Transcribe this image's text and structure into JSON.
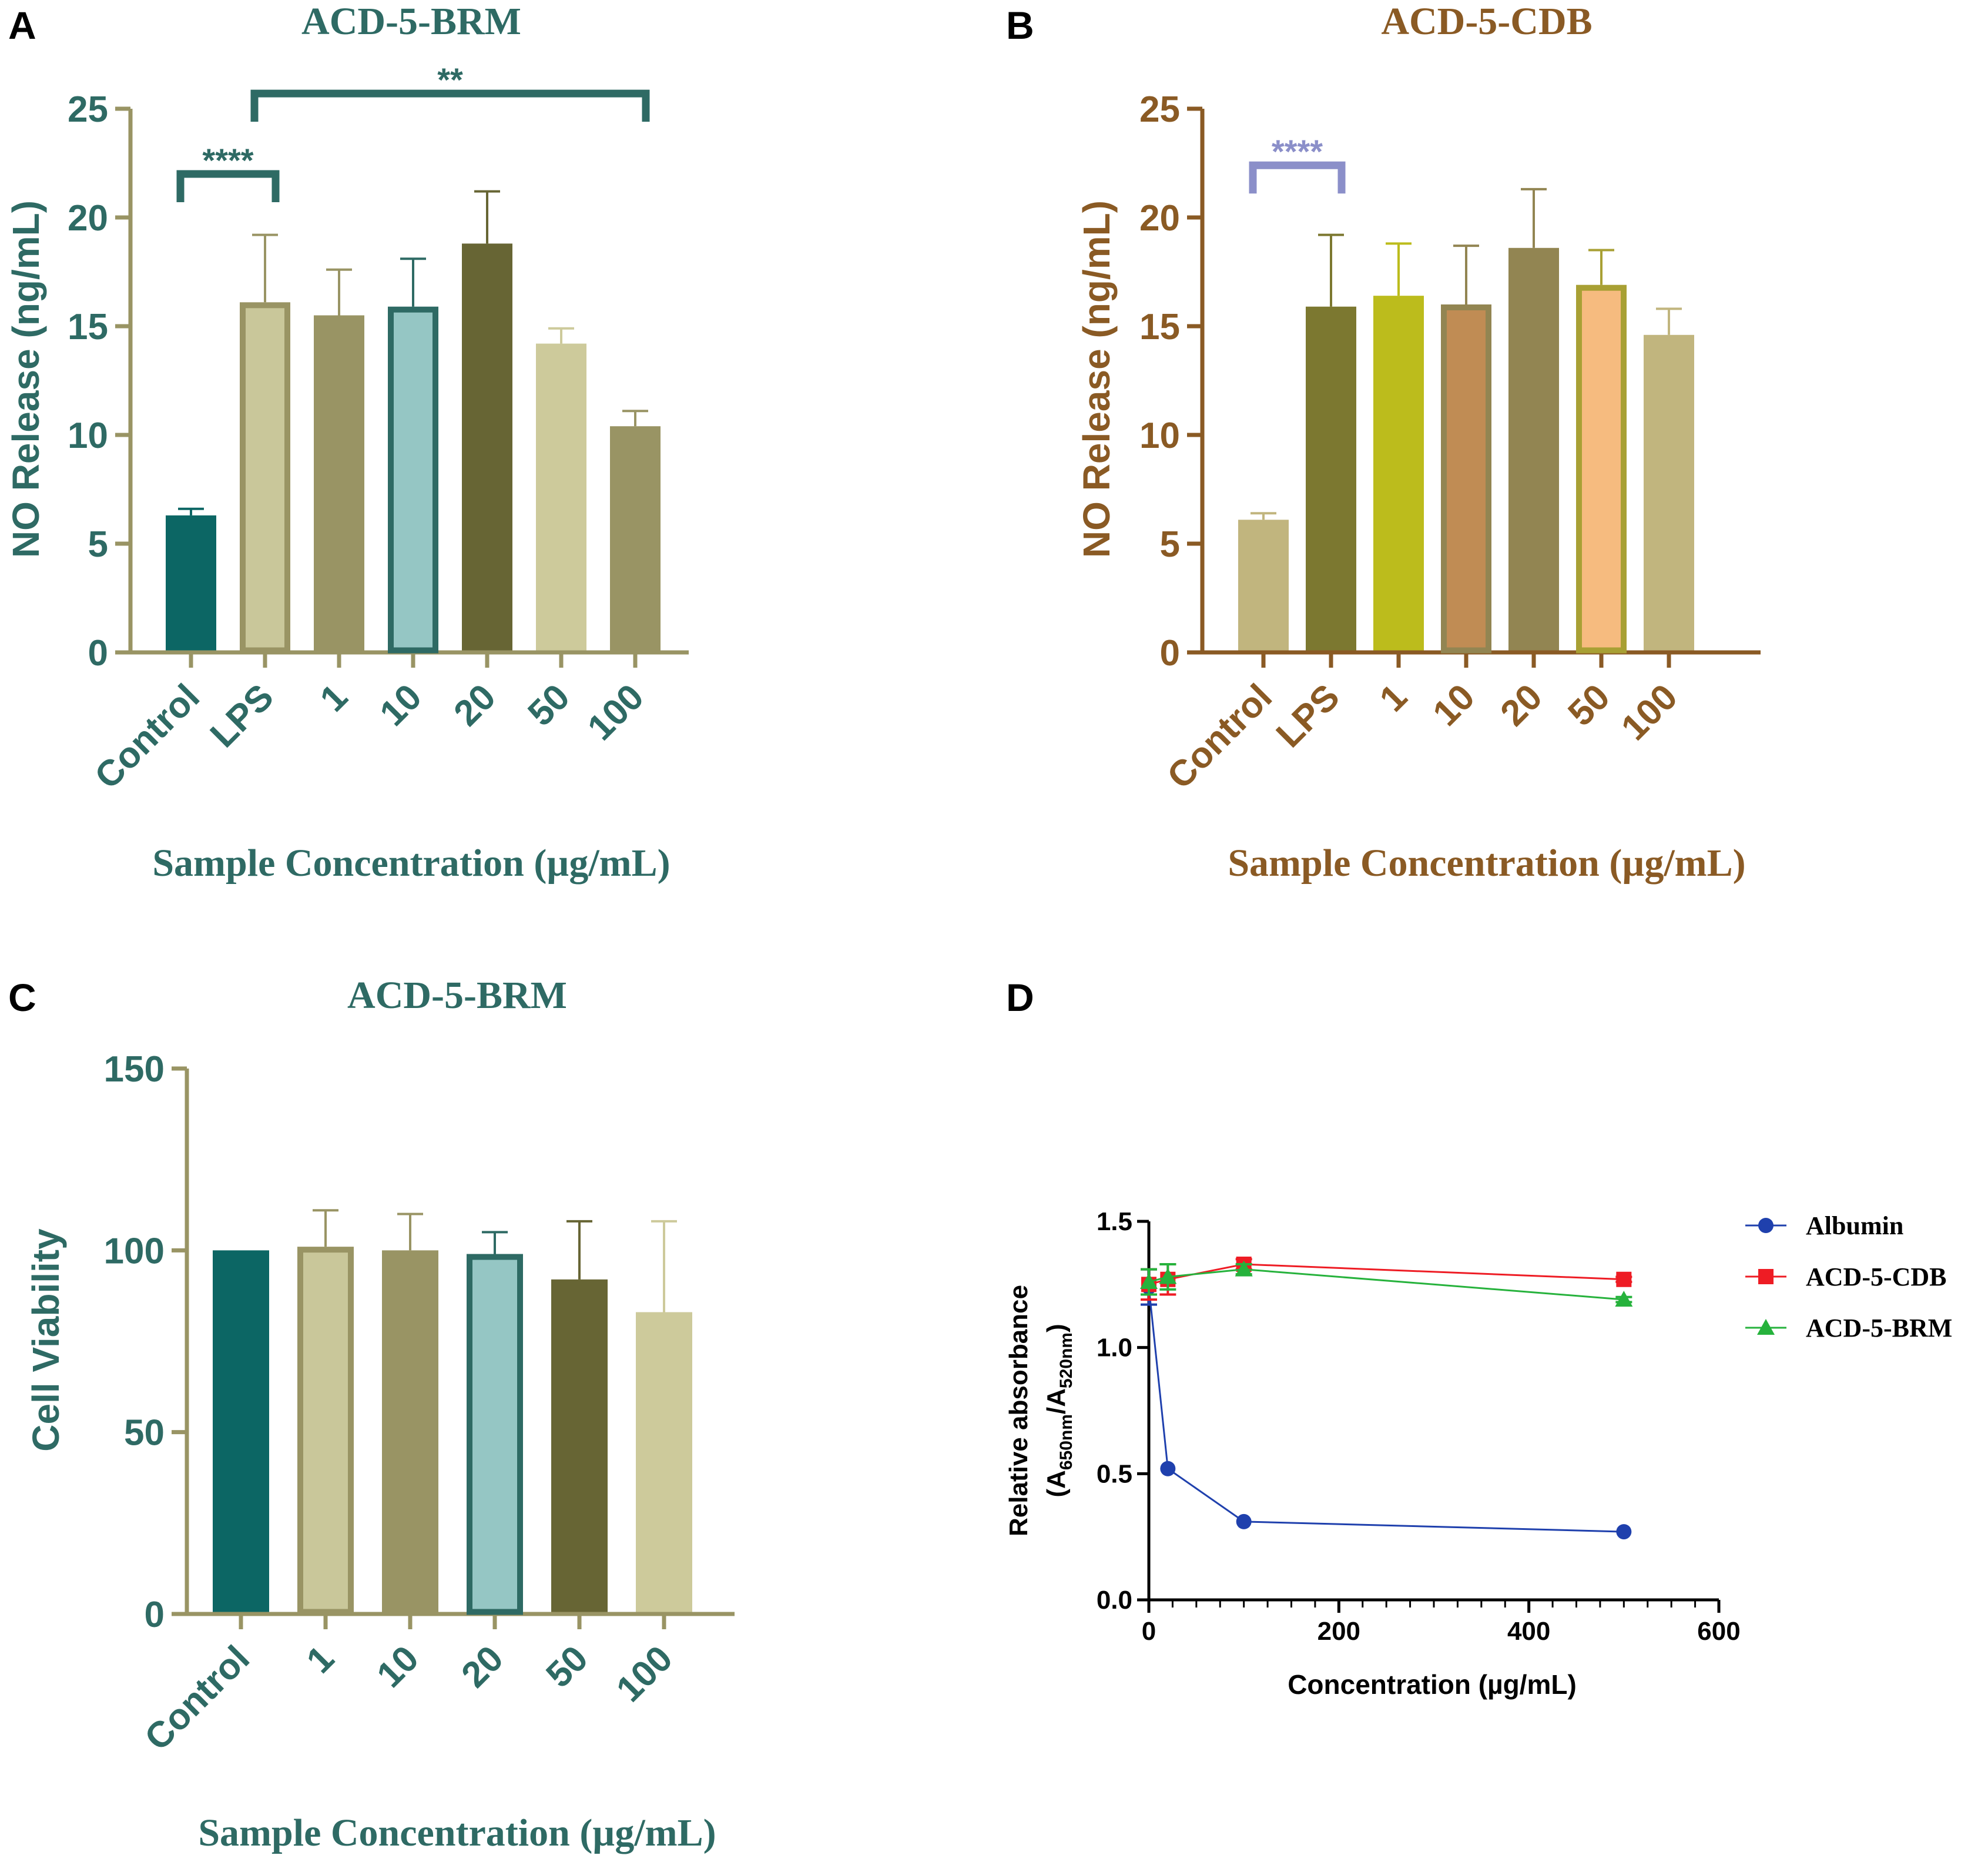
{
  "panels": {
    "A": {
      "letter": "A",
      "color": "#2e6a64"
    },
    "B": {
      "letter": "B",
      "color": "#8a5a24"
    },
    "C": {
      "letter": "C",
      "color": "#2e6a64"
    },
    "D": {
      "letter": "D",
      "color": "#000000"
    }
  },
  "chart_data": [
    {
      "panel": "A",
      "type": "bar",
      "title": "ACD-5-BRM",
      "xlabel": "Sample Concentration (µg/mL)",
      "ylabel": "NO Release (ng/mL)",
      "ylim": [
        0,
        25
      ],
      "yticks": [
        0,
        5,
        10,
        15,
        20,
        25
      ],
      "categories": [
        "Control",
        "LPS",
        "1",
        "10",
        "20",
        "50",
        "100"
      ],
      "values": [
        6.3,
        16.1,
        15.5,
        15.9,
        18.8,
        14.2,
        10.4
      ],
      "errors": [
        0.3,
        3.1,
        2.1,
        2.2,
        2.4,
        0.7,
        0.7
      ],
      "bar_fill": [
        "#0c6664",
        "#c9c79a",
        "#999464",
        "#95c6c4",
        "#676534",
        "#cdca9b",
        "#999464"
      ],
      "bar_edge": [
        "#0c6664",
        "#999464",
        "#999464",
        "#2e6a64",
        "#676534",
        "#cdca9b",
        "#999464"
      ],
      "axis_color": "#999464",
      "text_color": "#2e6a64",
      "significance": [
        {
          "from": "Control",
          "to": "LPS",
          "label": "****",
          "level": 22.0,
          "color": "#2e6a64"
        },
        {
          "from": "LPS",
          "to": "100",
          "label": "**",
          "level": 25.7,
          "color": "#2e6a64"
        }
      ]
    },
    {
      "panel": "B",
      "type": "bar",
      "title": "ACD-5-CDB",
      "xlabel": "Sample Concentration (µg/mL)",
      "ylabel": "NO Release (ng/mL)",
      "ylim": [
        0,
        25
      ],
      "yticks": [
        0,
        5,
        10,
        15,
        20,
        25
      ],
      "categories": [
        "Control",
        "LPS",
        "1",
        "10",
        "20",
        "50",
        "100"
      ],
      "values": [
        6.1,
        15.9,
        16.4,
        16.0,
        18.6,
        16.9,
        14.6
      ],
      "errors": [
        0.3,
        3.3,
        2.4,
        2.7,
        2.7,
        1.6,
        1.2
      ],
      "bar_fill": [
        "#c1b57e",
        "#7c7830",
        "#bcbc1c",
        "#c08c54",
        "#928552",
        "#f6bb7f",
        "#c1b57e"
      ],
      "bar_edge": [
        "#c1b57e",
        "#7c7830",
        "#bcbc1c",
        "#928552",
        "#928552",
        "#a8a034",
        "#c1b57e"
      ],
      "axis_color": "#8a5a24",
      "text_color": "#8a5a24",
      "significance": [
        {
          "from": "Control",
          "to": "LPS",
          "label": "****",
          "level": 22.4,
          "color": "#8b8fc9"
        }
      ]
    },
    {
      "panel": "C",
      "type": "bar",
      "title": "ACD-5-BRM",
      "xlabel": "Sample Concentration (µg/mL)",
      "ylabel": "Cell Viability",
      "ylim": [
        0,
        150
      ],
      "yticks": [
        0,
        50,
        100,
        150
      ],
      "categories": [
        "Control",
        "1",
        "10",
        "20",
        "50",
        "100"
      ],
      "values": [
        100,
        101,
        100,
        99,
        92,
        83
      ],
      "errors": [
        0,
        10,
        10,
        6,
        16,
        25
      ],
      "bar_fill": [
        "#0c6664",
        "#c9c79a",
        "#999464",
        "#95c6c4",
        "#676534",
        "#cdca9b"
      ],
      "bar_edge": [
        "#0c6664",
        "#999464",
        "#999464",
        "#2e6a64",
        "#676534",
        "#cdca9b"
      ],
      "axis_color": "#999464",
      "text_color": "#2e6a64",
      "significance": []
    },
    {
      "panel": "D",
      "type": "line",
      "title": "",
      "xlabel": "Concentration (µg/mL)",
      "ylabel": "Relative absorbance",
      "ylabel2_main": "(A",
      "ylabel2_sub1": "650nm",
      "ylabel2_mid": "/A",
      "ylabel2_sub2": "520nm",
      "ylabel2_end": ")",
      "xlim": [
        0,
        600
      ],
      "ylim": [
        0,
        1.5
      ],
      "xticks": [
        0,
        200,
        400,
        600
      ],
      "yticks": [
        0.0,
        0.5,
        1.0,
        1.5
      ],
      "ytick_labels": [
        "0.0",
        "0.5",
        "1.0",
        "1.5"
      ],
      "x": [
        0,
        20,
        100,
        500
      ],
      "series": [
        {
          "name": "Albumin",
          "values": [
            1.24,
            0.52,
            0.31,
            0.27
          ],
          "errors": [
            0.07,
            0.0,
            0.0,
            0.0
          ],
          "color": "#1f40ad",
          "marker": "circle"
        },
        {
          "name": "ACD-5-CDB",
          "values": [
            1.25,
            1.27,
            1.33,
            1.27
          ],
          "errors": [
            0.06,
            0.06,
            0.02,
            0.01
          ],
          "color": "#ee1c24",
          "marker": "square"
        },
        {
          "name": "ACD-5-BRM",
          "values": [
            1.26,
            1.28,
            1.31,
            1.19
          ],
          "errors": [
            0.05,
            0.05,
            0.02,
            0.01
          ],
          "color": "#26b23c",
          "marker": "triangle"
        }
      ],
      "legend": "right"
    }
  ]
}
